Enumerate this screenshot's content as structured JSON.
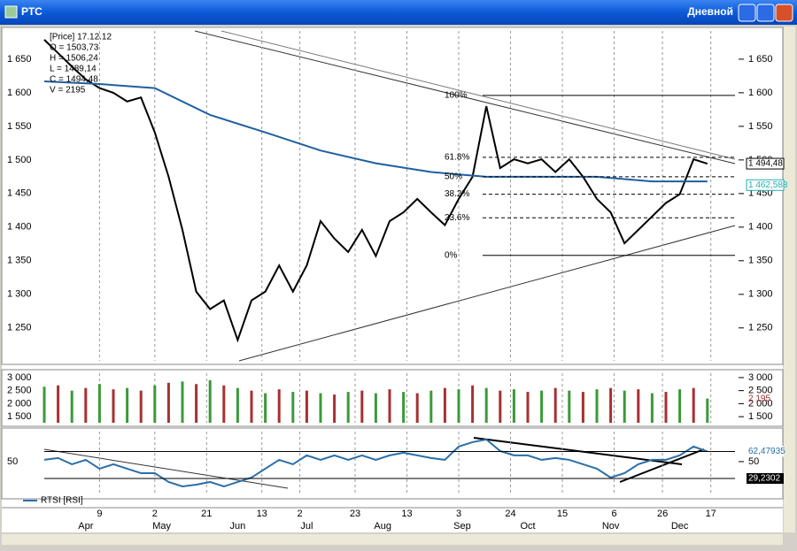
{
  "window": {
    "title": "РТС",
    "period": "Дневной"
  },
  "chart_data": [
    {
      "type": "line",
      "info": [
        "[Price] 17.12.12",
        "O = 1503,73",
        "H = 1506,24",
        "L = 1489,14",
        "C = 1494,48",
        "V = 2195"
      ],
      "xlim": [
        0,
        200
      ],
      "ylim": [
        1201,
        1692
      ],
      "yticks": [
        {
          "value": 1250,
          "label": "1 250"
        },
        {
          "value": 1300,
          "label": "1 300"
        },
        {
          "value": 1350,
          "label": "1 350"
        },
        {
          "value": 1400,
          "label": "1 400"
        },
        {
          "value": 1450,
          "label": "1 450"
        },
        {
          "value": 1500,
          "label": "1 500"
        },
        {
          "value": 1550,
          "label": "1 550"
        },
        {
          "value": 1600,
          "label": "1 600"
        },
        {
          "value": 1650,
          "label": "1 650"
        }
      ],
      "series": [
        {
          "color": "#000000",
          "x": [
            0,
            4,
            8,
            12,
            16,
            20,
            24,
            28,
            32,
            36,
            40,
            44,
            48,
            52,
            56,
            60,
            64,
            68,
            72,
            76,
            80,
            84,
            88,
            92,
            96,
            100,
            104,
            108,
            112,
            116,
            120,
            124,
            128,
            132,
            136,
            140,
            144,
            148,
            152,
            156,
            160,
            164,
            168,
            172,
            176,
            180,
            184,
            188,
            192
          ],
          "values": [
            1679,
            1659,
            1639,
            1620,
            1607,
            1600,
            1587,
            1593,
            1541,
            1475,
            1396,
            1304,
            1278,
            1291,
            1232,
            1291,
            1304,
            1343,
            1304,
            1343,
            1409,
            1383,
            1363,
            1396,
            1357,
            1409,
            1422,
            1442,
            1422,
            1403,
            1442,
            1475,
            1580,
            1488,
            1501,
            1495,
            1501,
            1482,
            1501,
            1475,
            1442,
            1422,
            1376,
            1396,
            1416,
            1436,
            1449,
            1501,
            1494.48
          ]
        },
        {
          "color": "#1f5fa0",
          "x": [
            0,
            16,
            32,
            48,
            64,
            80,
            96,
            112,
            128,
            144,
            160,
            176,
            192
          ],
          "values": [
            1617,
            1613,
            1607,
            1567,
            1541,
            1514,
            1495,
            1482,
            1475,
            1475,
            1475,
            1468,
            1468
          ]
        }
      ],
      "levels": [
        {
          "value": 1596,
          "label": "100%"
        },
        {
          "value": 1504,
          "label": "61.8%"
        },
        {
          "value": 1475,
          "label": "50%"
        },
        {
          "value": 1449,
          "label": "38.2%"
        },
        {
          "value": 1414,
          "label": "23.6%"
        },
        {
          "value": 1358,
          "label": "0%"
        }
      ],
      "price_labels": [
        {
          "value": 1494.48,
          "label": "1 494,48",
          "color": "#000000"
        },
        {
          "value": 1462.588,
          "label": "1 462,588",
          "color": "#20b0b0"
        }
      ]
    },
    {
      "type": "bar",
      "xlim": [
        0,
        200
      ],
      "ylim": [
        1267,
        3167
      ],
      "yticks": [
        {
          "value": 1500,
          "label": "1 500"
        },
        {
          "value": 2000,
          "label": "2 000"
        },
        {
          "value": 2500,
          "label": "2 500"
        },
        {
          "value": 3000,
          "label": "3 000"
        }
      ],
      "colors": [
        "#3a9a3a",
        "#a83030"
      ],
      "x": [
        0,
        4,
        8,
        12,
        16,
        20,
        24,
        28,
        32,
        36,
        40,
        44,
        48,
        52,
        56,
        60,
        64,
        68,
        72,
        76,
        80,
        84,
        88,
        92,
        96,
        100,
        104,
        108,
        112,
        116,
        120,
        124,
        128,
        132,
        136,
        140,
        144,
        148,
        152,
        156,
        160,
        164,
        168,
        172,
        176,
        180,
        184,
        188,
        192
      ],
      "values": [
        2650,
        2700,
        2500,
        2600,
        2750,
        2550,
        2600,
        2500,
        2700,
        2800,
        2850,
        2750,
        2900,
        2700,
        2600,
        2500,
        2400,
        2550,
        2450,
        2500,
        2400,
        2350,
        2450,
        2500,
        2400,
        2550,
        2450,
        2400,
        2500,
        2600,
        2550,
        2700,
        2600,
        2500,
        2550,
        2450,
        2500,
        2600,
        2500,
        2450,
        2550,
        2600,
        2500,
        2550,
        2400,
        2450,
        2550,
        2600,
        2195
      ],
      "last_label": {
        "value": 2195,
        "label": "2 195"
      }
    },
    {
      "type": "line",
      "xlim": [
        0,
        200
      ],
      "ylim": [
        8.5,
        87
      ],
      "yticks": [
        50
      ],
      "series": [
        {
          "name": "RTSI [RSI]",
          "color": "#2a6fa8",
          "x": [
            0,
            4,
            8,
            12,
            16,
            20,
            24,
            28,
            32,
            36,
            40,
            44,
            48,
            52,
            56,
            60,
            64,
            68,
            72,
            76,
            80,
            84,
            88,
            92,
            96,
            100,
            104,
            108,
            112,
            116,
            120,
            124,
            128,
            132,
            136,
            140,
            144,
            148,
            152,
            156,
            160,
            164,
            168,
            172,
            176,
            180,
            184,
            188,
            192
          ],
          "values": [
            52.2,
            54.4,
            46.7,
            52.2,
            41.3,
            46.7,
            41.3,
            35.8,
            35.8,
            24.9,
            19.4,
            21.6,
            24.9,
            19.4,
            24.9,
            30.3,
            41.3,
            52.2,
            46.7,
            57.7,
            52.2,
            57.7,
            52.2,
            57.7,
            52.2,
            57.7,
            60.9,
            57.7,
            54.4,
            52.2,
            68.6,
            74,
            77.3,
            63.1,
            57.7,
            57.7,
            52.2,
            54.4,
            52.2,
            46.7,
            41.3,
            30.3,
            35.8,
            46.7,
            52.2,
            52.2,
            57.7,
            68.6,
            62.48
          ]
        }
      ],
      "levels": [
        {
          "value": 62.47935,
          "label": "62,47935"
        },
        {
          "value": 29.2302,
          "label": "29,2302"
        }
      ],
      "xticks": [
        {
          "value": 16,
          "label": "9"
        },
        {
          "value": 32,
          "label": "2"
        },
        {
          "value": 47,
          "label": "21"
        },
        {
          "value": 63,
          "label": "13"
        },
        {
          "value": 74,
          "label": "2"
        },
        {
          "value": 90,
          "label": "23"
        },
        {
          "value": 105,
          "label": "13"
        },
        {
          "value": 120,
          "label": "3"
        },
        {
          "value": 135,
          "label": "24"
        },
        {
          "value": 150,
          "label": "15"
        },
        {
          "value": 165,
          "label": "6"
        },
        {
          "value": 179,
          "label": "26"
        },
        {
          "value": 193,
          "label": "17"
        }
      ],
      "month_ticks": [
        {
          "value": 12,
          "label": "Apr"
        },
        {
          "value": 34,
          "label": "May"
        },
        {
          "value": 56,
          "label": "Jun"
        },
        {
          "value": 76,
          "label": "Jul"
        },
        {
          "value": 98,
          "label": "Aug"
        },
        {
          "value": 121,
          "label": "Sep"
        },
        {
          "value": 140,
          "label": "Oct"
        },
        {
          "value": 164,
          "label": "Nov"
        },
        {
          "value": 184,
          "label": "Dec"
        }
      ]
    }
  ]
}
